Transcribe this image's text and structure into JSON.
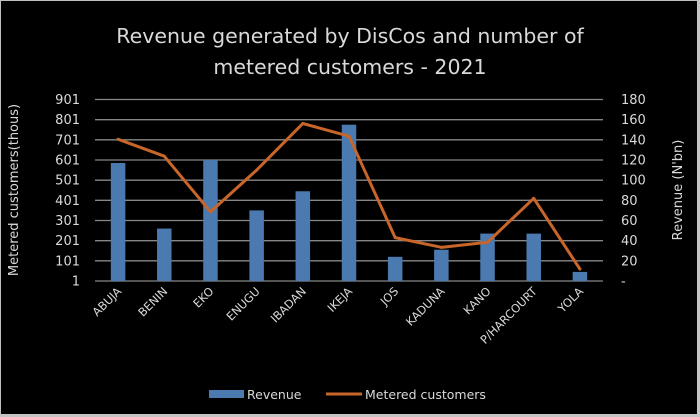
{
  "chart_data": {
    "type": "bar+line",
    "title_lines": [
      "Revenue generated by DisCos and number of",
      "metered customers - 2021"
    ],
    "categories": [
      "ABUJA",
      "BENIN",
      "EKO",
      "ENUGU",
      "IBADAN",
      "IKEJA",
      "JOS",
      "KADUNA",
      "KANO",
      "P/HARCOURT",
      "YOLA"
    ],
    "series": [
      {
        "name": "Revenue",
        "type": "bar",
        "axis": "right",
        "color": "#4a7ab0",
        "values": [
          117,
          52,
          120,
          70,
          89,
          155,
          24,
          31,
          47,
          47,
          9
        ]
      },
      {
        "name": "Metered customers",
        "type": "line",
        "axis": "left",
        "color": "#c8652a",
        "values": [
          704,
          620,
          344,
          551,
          782,
          719,
          216,
          168,
          193,
          411,
          60
        ]
      }
    ],
    "left_axis": {
      "label": "Metered customers(thous)",
      "range": [
        1,
        901
      ],
      "ticks": [
        "1",
        "101",
        "201",
        "301",
        "401",
        "501",
        "601",
        "701",
        "801",
        "901"
      ]
    },
    "right_axis": {
      "label": "Revenue (N'bn)",
      "range": [
        0,
        180
      ],
      "ticks": [
        "-",
        "20",
        "40",
        "60",
        "80",
        "100",
        "120",
        "140",
        "160",
        "180"
      ]
    },
    "grid": true,
    "legend": {
      "position": "bottom",
      "entries": [
        "Revenue",
        "Metered customers"
      ]
    },
    "colors": {
      "background": "#000000",
      "text": "#d9d9d9",
      "grid": "#878787"
    }
  }
}
